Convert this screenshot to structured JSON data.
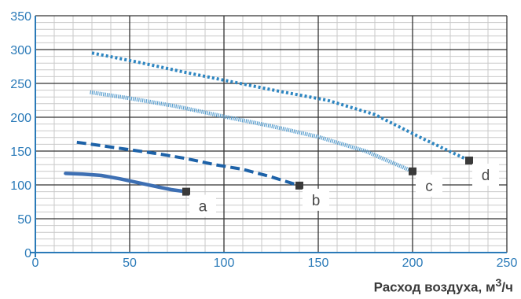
{
  "chart_data": {
    "type": "line",
    "xlabel_prefix": "Расход воздуха, м",
    "xlabel_sup": "3",
    "xlabel_suffix": "/ч",
    "xlim": [
      0,
      250
    ],
    "ylim": [
      0,
      350
    ],
    "x_ticks": [
      "0",
      "50",
      "100",
      "150",
      "200",
      "250"
    ],
    "y_ticks": [
      "0",
      "50",
      "100",
      "150",
      "200",
      "250",
      "300",
      "350"
    ],
    "grid": true,
    "series": [
      {
        "name": "a",
        "style": "solid",
        "color": "#3d6fb3",
        "points": [
          [
            16,
            117
          ],
          [
            25,
            116
          ],
          [
            35,
            114
          ],
          [
            45,
            109
          ],
          [
            55,
            103
          ],
          [
            65,
            97
          ],
          [
            72,
            93
          ],
          [
            80,
            90
          ]
        ]
      },
      {
        "name": "b",
        "style": "dashed",
        "color": "#1d62a8",
        "points": [
          [
            22,
            163
          ],
          [
            35,
            158
          ],
          [
            50,
            152
          ],
          [
            65,
            146
          ],
          [
            80,
            139
          ],
          [
            95,
            130
          ],
          [
            110,
            123
          ],
          [
            125,
            112
          ],
          [
            140,
            99
          ]
        ]
      },
      {
        "name": "c",
        "style": "hatched",
        "color": "#5a9fcf",
        "points": [
          [
            29,
            237
          ],
          [
            50,
            228
          ],
          [
            75,
            216
          ],
          [
            100,
            201
          ],
          [
            125,
            187
          ],
          [
            150,
            171
          ],
          [
            175,
            150
          ],
          [
            200,
            120
          ]
        ]
      },
      {
        "name": "d",
        "style": "dotted",
        "color": "#2e86c1",
        "points": [
          [
            30,
            295
          ],
          [
            55,
            281
          ],
          [
            80,
            266
          ],
          [
            105,
            252
          ],
          [
            130,
            238
          ],
          [
            155,
            225
          ],
          [
            180,
            204
          ],
          [
            205,
            169
          ],
          [
            230,
            136
          ]
        ]
      }
    ]
  }
}
